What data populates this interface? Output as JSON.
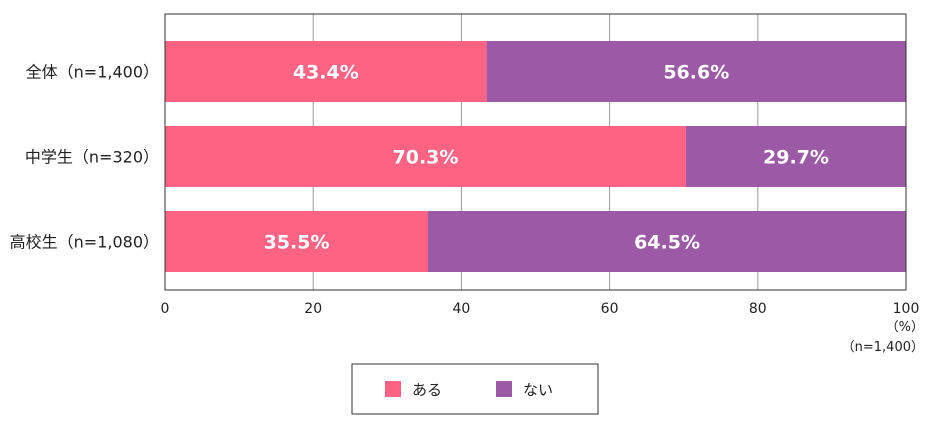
{
  "chart_data": {
    "type": "bar",
    "orientation": "horizontal",
    "stacked": true,
    "categories": [
      "全体（n=1,400）",
      "中学生（n=320）",
      "高校生（n=1,080）"
    ],
    "series": [
      {
        "name": "ある",
        "values": [
          43.4,
          70.3,
          35.5
        ],
        "labels": [
          "43.4%",
          "70.3%",
          "35.5%"
        ],
        "color": "#ff6384"
      },
      {
        "name": "ない",
        "values": [
          56.6,
          29.7,
          64.5
        ],
        "labels": [
          "56.6%",
          "29.7%",
          "64.5%"
        ],
        "color": "#9b59a6"
      }
    ],
    "xlim": [
      0,
      100
    ],
    "xticks": [
      "0",
      "20",
      "40",
      "60",
      "80",
      "100"
    ],
    "xunit": "（%）",
    "note": "（n=1,400）",
    "grid": true,
    "legend_position": "bottom"
  }
}
